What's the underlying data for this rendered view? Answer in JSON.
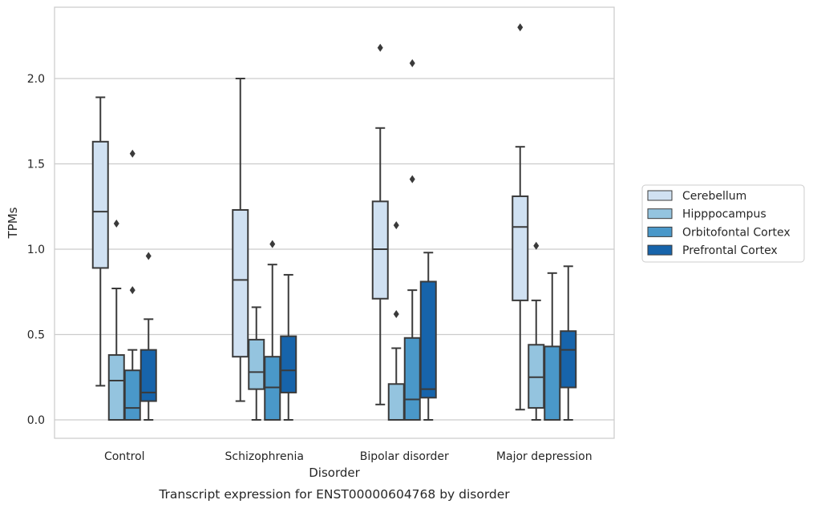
{
  "chart_data": {
    "type": "box",
    "title": "Transcript expression for ENST00000604768 by disorder",
    "xlabel": "Disorder",
    "ylabel": "TPMs",
    "ylim": [
      -0.11,
      2.43
    ],
    "yticks": [
      "0.0",
      "0.5",
      "1.0",
      "1.5",
      "2.0"
    ],
    "yticks_values": [
      0,
      0.5,
      1.0,
      1.5,
      2.0
    ],
    "grid": "horizontal",
    "legend_position": "right",
    "categories": [
      "Control",
      "Schizophrenia",
      "Bipolar disorder",
      "Major depression"
    ],
    "series": [
      {
        "name": "Cerebellum",
        "color": "#d0e1f2",
        "boxes": [
          {
            "whislo": 0.2,
            "q1": 0.89,
            "med": 1.22,
            "q3": 1.63,
            "whishi": 1.89,
            "fliers": []
          },
          {
            "whislo": 0.11,
            "q1": 0.37,
            "med": 0.82,
            "q3": 1.23,
            "whishi": 2.0,
            "fliers": []
          },
          {
            "whislo": 0.09,
            "q1": 0.71,
            "med": 1.0,
            "q3": 1.28,
            "whishi": 1.71,
            "fliers": [
              2.18
            ]
          },
          {
            "whislo": 0.06,
            "q1": 0.7,
            "med": 1.13,
            "q3": 1.31,
            "whishi": 1.6,
            "fliers": [
              2.3
            ]
          }
        ]
      },
      {
        "name": "Hipppocampus",
        "color": "#94c4df",
        "boxes": [
          {
            "whislo": 0.0,
            "q1": 0.0,
            "med": 0.23,
            "q3": 0.38,
            "whishi": 0.77,
            "fliers": [
              1.15
            ]
          },
          {
            "whislo": 0.0,
            "q1": 0.18,
            "med": 0.28,
            "q3": 0.47,
            "whishi": 0.66,
            "fliers": []
          },
          {
            "whislo": 0.0,
            "q1": 0.0,
            "med": 0.0,
            "q3": 0.21,
            "whishi": 0.42,
            "fliers": [
              0.62,
              1.14
            ]
          },
          {
            "whislo": 0.0,
            "q1": 0.07,
            "med": 0.25,
            "q3": 0.44,
            "whishi": 0.7,
            "fliers": [
              1.02
            ]
          }
        ]
      },
      {
        "name": "Orbitofontal Cortex",
        "color": "#4a98c9",
        "boxes": [
          {
            "whislo": 0.0,
            "q1": 0.0,
            "med": 0.07,
            "q3": 0.29,
            "whishi": 0.41,
            "fliers": [
              0.76,
              1.56
            ]
          },
          {
            "whislo": 0.0,
            "q1": 0.0,
            "med": 0.19,
            "q3": 0.37,
            "whishi": 0.91,
            "fliers": [
              1.03
            ]
          },
          {
            "whislo": 0.0,
            "q1": 0.0,
            "med": 0.12,
            "q3": 0.48,
            "whishi": 0.76,
            "fliers": [
              1.41,
              2.09
            ]
          },
          {
            "whislo": 0.0,
            "q1": 0.0,
            "med": 0.0,
            "q3": 0.43,
            "whishi": 0.86,
            "fliers": []
          }
        ]
      },
      {
        "name": "Prefrontal Cortex",
        "color": "#1764ab",
        "boxes": [
          {
            "whislo": 0.0,
            "q1": 0.11,
            "med": 0.16,
            "q3": 0.41,
            "whishi": 0.59,
            "fliers": [
              0.96
            ]
          },
          {
            "whislo": 0.0,
            "q1": 0.16,
            "med": 0.29,
            "q3": 0.49,
            "whishi": 0.85,
            "fliers": []
          },
          {
            "whislo": 0.0,
            "q1": 0.13,
            "med": 0.18,
            "q3": 0.81,
            "whishi": 0.98,
            "fliers": []
          },
          {
            "whislo": 0.0,
            "q1": 0.19,
            "med": 0.41,
            "q3": 0.52,
            "whishi": 0.9,
            "fliers": []
          }
        ]
      }
    ]
  }
}
